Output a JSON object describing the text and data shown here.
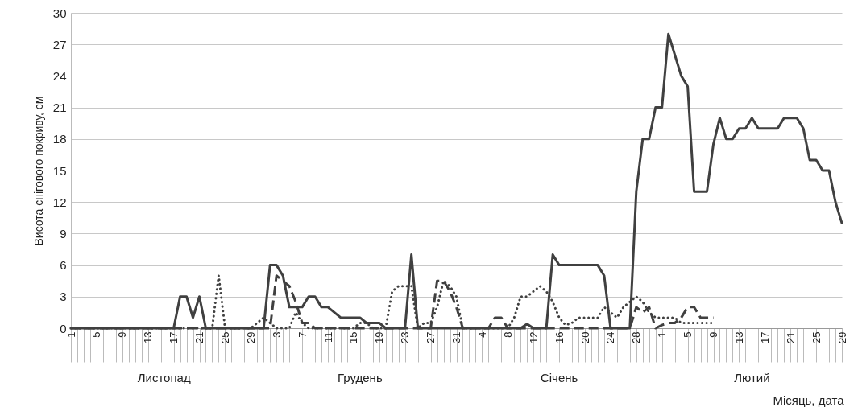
{
  "chart_data": {
    "type": "line",
    "ylabel": "Висота снігового покриву, см",
    "xlabel": "Місяць, дата",
    "annotations": [
      "Листопад",
      "Грудень",
      "Січень",
      "Лютий"
    ],
    "categories": [
      "1",
      null,
      null,
      null,
      "5",
      null,
      null,
      null,
      "9",
      null,
      null,
      null,
      "13",
      null,
      null,
      null,
      "17",
      null,
      null,
      null,
      "21",
      null,
      null,
      null,
      "25",
      null,
      null,
      null,
      "29",
      null,
      null,
      null,
      "3",
      null,
      null,
      null,
      "7",
      null,
      null,
      null,
      "11",
      null,
      null,
      null,
      "15",
      null,
      null,
      null,
      "19",
      null,
      null,
      null,
      "23",
      null,
      null,
      null,
      "27",
      null,
      null,
      null,
      "31",
      null,
      null,
      null,
      "4",
      null,
      null,
      null,
      "8",
      null,
      null,
      null,
      "12",
      null,
      null,
      null,
      "16",
      null,
      null,
      null,
      "20",
      null,
      null,
      null,
      "24",
      null,
      null,
      null,
      "28",
      null,
      null,
      null,
      "1",
      null,
      null,
      null,
      "5",
      null,
      null,
      null,
      "9",
      null,
      null,
      null,
      "13",
      null,
      null,
      null,
      "17",
      null,
      null,
      null,
      "21",
      null,
      null,
      null,
      "25",
      null,
      null,
      null,
      "29"
    ],
    "series": [
      {
        "color": "#404040",
        "line_style": "solid",
        "values": [
          0,
          0,
          0,
          0,
          0,
          0,
          0,
          0,
          0,
          0,
          0,
          0,
          0,
          0,
          0,
          0,
          0,
          3,
          3,
          1,
          3,
          0,
          0,
          0,
          0,
          0,
          0,
          0,
          0,
          0,
          0,
          6,
          6,
          5,
          2,
          2,
          2,
          3,
          3,
          2,
          2,
          1.5,
          1,
          1,
          1,
          1,
          0.5,
          0.5,
          0.5,
          0,
          0,
          0,
          0,
          7,
          0,
          0,
          0,
          0,
          0,
          0,
          0,
          0,
          0,
          0,
          0,
          0,
          0,
          0,
          0,
          0,
          0,
          0.4,
          0,
          0,
          0,
          7,
          6,
          6,
          6,
          6,
          6,
          6,
          6,
          5,
          0,
          0,
          0,
          0,
          13,
          18,
          18,
          21,
          21,
          28,
          26,
          24,
          23,
          13,
          13,
          13,
          17.5,
          20,
          18,
          18,
          19,
          19,
          20,
          19,
          19,
          19,
          19,
          20,
          20,
          20,
          19,
          16,
          16,
          15,
          15,
          12,
          10
        ]
      },
      {
        "color": "#404040",
        "line_style": "dashed",
        "values": [
          0,
          0,
          0,
          0,
          0,
          0,
          0,
          0,
          0,
          0,
          0,
          0,
          0,
          0,
          0,
          0,
          0,
          0,
          0,
          0,
          0,
          0,
          0,
          0,
          0,
          0,
          0,
          0,
          0,
          0,
          0,
          0,
          5,
          4.5,
          4,
          2.5,
          0.5,
          0.5,
          0,
          0,
          0,
          0,
          0,
          0,
          0,
          0,
          0,
          0,
          0,
          0,
          0,
          0,
          0,
          0,
          0,
          0,
          0,
          4.5,
          4.5,
          3.5,
          2,
          0,
          0,
          0,
          0,
          0,
          1,
          1,
          0,
          0,
          0,
          0,
          0,
          0,
          0,
          0,
          0,
          0,
          0,
          0,
          0,
          0,
          0,
          0,
          0,
          0,
          0,
          0,
          2,
          1.5,
          2,
          0,
          0.3,
          0.5,
          0.5,
          1,
          2,
          2,
          1,
          1,
          1,
          null,
          null,
          null,
          null,
          null,
          null,
          null,
          null,
          null,
          null,
          null,
          null,
          null,
          null,
          null,
          null,
          null,
          null,
          null,
          null
        ]
      },
      {
        "color": "#404040",
        "line_style": "dotted",
        "values": [
          0,
          0,
          0,
          0,
          0,
          0,
          0,
          0,
          0,
          0,
          0,
          0,
          0,
          0,
          0,
          0,
          0,
          0,
          0,
          0,
          0,
          0,
          0,
          5,
          0,
          0,
          0,
          0,
          0,
          0.5,
          1,
          0.5,
          0,
          0,
          0,
          1.5,
          0.5,
          0,
          0,
          0,
          0,
          0,
          0,
          0,
          0,
          0.5,
          0.5,
          0,
          0,
          0,
          3.5,
          4,
          4,
          4,
          0,
          0.5,
          0.5,
          2,
          4.5,
          4,
          3,
          0,
          0,
          0,
          0,
          0,
          0,
          0,
          0,
          1,
          3,
          3,
          3.5,
          4,
          3.5,
          2.5,
          1,
          0.3,
          0.5,
          1,
          1,
          1,
          1,
          2,
          1.5,
          1,
          2,
          2.5,
          3,
          2.5,
          1.5,
          1,
          1,
          1,
          1,
          0.5,
          0.5,
          0.5,
          0.5,
          0.5,
          0.5,
          null,
          null,
          null,
          null,
          null,
          null,
          null,
          null,
          null,
          null,
          null,
          null,
          null,
          null,
          null,
          null,
          null,
          null,
          null,
          null
        ]
      }
    ],
    "ylim": [
      0,
      30
    ],
    "yticks": [
      0,
      3,
      6,
      9,
      12,
      15,
      18,
      21,
      24,
      27,
      30
    ],
    "grid": "y"
  }
}
